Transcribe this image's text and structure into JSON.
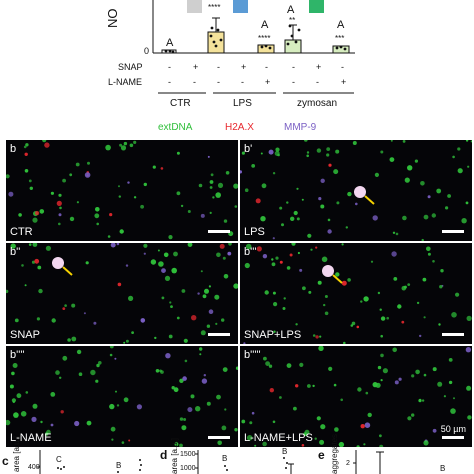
{
  "top_chart": {
    "ylabel": "NO",
    "y_tick_zero": "0",
    "bar_colors": [
      "#cfcfcf",
      "#5b9bd5",
      "#2fb569"
    ],
    "letters": [
      "A",
      "A",
      "A",
      "A"
    ],
    "stars": [
      "****",
      "****",
      "**",
      "***"
    ],
    "row_labels": {
      "snap": "SNAP",
      "lname": "L-NAME"
    },
    "columns": [
      {
        "snap": "-",
        "lname": "-"
      },
      {
        "snap": "+",
        "lname": "-"
      },
      {
        "snap": "-",
        "lname": "-"
      },
      {
        "snap": "+",
        "lname": "-"
      },
      {
        "snap": "-",
        "lname": "+"
      },
      {
        "snap": "-",
        "lname": "-"
      },
      {
        "snap": "+",
        "lname": "-"
      },
      {
        "snap": "-",
        "lname": "+"
      }
    ],
    "groups": [
      "CTR",
      "LPS",
      "zymosan"
    ]
  },
  "legend": {
    "extdna": {
      "label": "extDNA",
      "color": "#2fbf3a"
    },
    "h2ax": {
      "label": "H2A.X",
      "color": "#e8282e"
    },
    "mmp9": {
      "label": "MMP-9",
      "color": "#7a5fc4"
    }
  },
  "panels": [
    {
      "tag": "b",
      "condition": "CTR"
    },
    {
      "tag": "b'",
      "condition": "LPS"
    },
    {
      "tag": "b''",
      "condition": "SNAP"
    },
    {
      "tag": "b'''",
      "condition": "SNAP+LPS"
    },
    {
      "tag": "b''''",
      "condition": "L-NAME"
    },
    {
      "tag": "b'''''",
      "condition": "L-NAME+LPS"
    }
  ],
  "scale_bar": "50 µm",
  "bottom": {
    "c": {
      "letter": "c",
      "ylabel": "area [a.u.]",
      "tick": "400",
      "marks": [
        "C",
        "B"
      ]
    },
    "d": {
      "letter": "d",
      "ylabel": "area [a.u.]",
      "ticks": [
        "1500",
        "1000"
      ],
      "marks": [
        "B",
        "B"
      ]
    },
    "e": {
      "letter": "e",
      "ylabel": "aggregates",
      "tick": "2",
      "marks": [
        "B"
      ]
    }
  }
}
